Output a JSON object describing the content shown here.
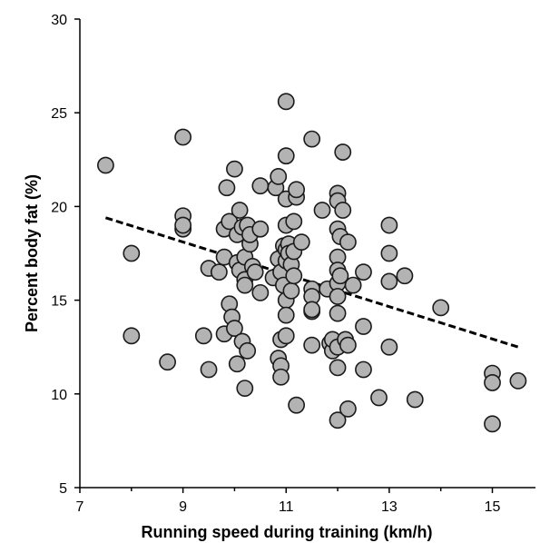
{
  "chart_data": {
    "type": "scatter",
    "title": "",
    "xlabel": "Running speed during training (km/h)",
    "ylabel": "Percent body fat (%)",
    "xlim": [
      7,
      16
    ],
    "ylim": [
      5,
      30
    ],
    "xticks": [
      7,
      9,
      11,
      13,
      15
    ],
    "yticks": [
      5,
      10,
      15,
      20,
      25,
      30
    ],
    "x_tick_labels": [
      "7",
      "9",
      "11",
      "13",
      "15"
    ],
    "y_tick_labels": [
      "5",
      "10",
      "15",
      "20",
      "25",
      "30"
    ],
    "grid": false,
    "trendline": {
      "style": "dashed",
      "x": [
        7.5,
        15.5
      ],
      "y": [
        19.4,
        12.5
      ]
    },
    "points": [
      [
        7.5,
        22.2
      ],
      [
        8.0,
        17.5
      ],
      [
        8.0,
        13.1
      ],
      [
        8.7,
        11.7
      ],
      [
        9.0,
        23.7
      ],
      [
        9.0,
        19.5
      ],
      [
        9.0,
        18.8
      ],
      [
        9.0,
        19.0
      ],
      [
        9.4,
        13.1
      ],
      [
        9.5,
        16.7
      ],
      [
        9.5,
        11.3
      ],
      [
        9.7,
        16.5
      ],
      [
        9.8,
        18.8
      ],
      [
        9.8,
        17.3
      ],
      [
        9.8,
        13.2
      ],
      [
        9.85,
        21.0
      ],
      [
        9.9,
        14.8
      ],
      [
        9.9,
        19.2
      ],
      [
        9.95,
        14.1
      ],
      [
        10.0,
        22.0
      ],
      [
        10.0,
        13.5
      ],
      [
        10.05,
        17.0
      ],
      [
        10.05,
        18.5
      ],
      [
        10.05,
        11.6
      ],
      [
        10.1,
        19.8
      ],
      [
        10.1,
        16.6
      ],
      [
        10.15,
        12.8
      ],
      [
        10.15,
        18.9
      ],
      [
        10.2,
        16.1
      ],
      [
        10.2,
        15.8
      ],
      [
        10.2,
        17.3
      ],
      [
        10.2,
        10.3
      ],
      [
        10.25,
        19.0
      ],
      [
        10.25,
        12.3
      ],
      [
        10.3,
        18.0
      ],
      [
        10.3,
        18.5
      ],
      [
        10.35,
        16.8
      ],
      [
        10.4,
        16.5
      ],
      [
        10.5,
        21.1
      ],
      [
        10.5,
        18.8
      ],
      [
        10.5,
        15.4
      ],
      [
        10.75,
        16.2
      ],
      [
        10.8,
        21.0
      ],
      [
        10.85,
        21.6
      ],
      [
        10.85,
        17.2
      ],
      [
        10.85,
        11.9
      ],
      [
        10.9,
        16.5
      ],
      [
        10.9,
        12.9
      ],
      [
        10.9,
        11.5
      ],
      [
        10.9,
        10.9
      ],
      [
        10.95,
        15.8
      ],
      [
        10.95,
        17.9
      ],
      [
        11.0,
        25.6
      ],
      [
        11.0,
        22.7
      ],
      [
        11.0,
        20.4
      ],
      [
        11.0,
        19.0
      ],
      [
        11.0,
        17.7
      ],
      [
        11.0,
        17.1
      ],
      [
        11.0,
        15.0
      ],
      [
        11.0,
        14.2
      ],
      [
        11.0,
        13.1
      ],
      [
        11.05,
        18.0
      ],
      [
        11.05,
        17.5
      ],
      [
        11.1,
        16.9
      ],
      [
        11.1,
        15.5
      ],
      [
        11.15,
        19.2
      ],
      [
        11.15,
        17.6
      ],
      [
        11.15,
        16.3
      ],
      [
        11.2,
        20.5
      ],
      [
        11.2,
        20.9
      ],
      [
        11.2,
        9.4
      ],
      [
        11.3,
        18.1
      ],
      [
        11.5,
        23.6
      ],
      [
        11.5,
        15.6
      ],
      [
        11.5,
        15.2
      ],
      [
        11.5,
        14.4
      ],
      [
        11.5,
        14.5
      ],
      [
        11.5,
        12.6
      ],
      [
        11.7,
        19.8
      ],
      [
        11.8,
        15.6
      ],
      [
        11.85,
        12.7
      ],
      [
        11.9,
        12.3
      ],
      [
        11.9,
        12.9
      ],
      [
        12.0,
        20.7
      ],
      [
        12.0,
        20.3
      ],
      [
        12.0,
        18.8
      ],
      [
        12.0,
        17.3
      ],
      [
        12.0,
        16.6
      ],
      [
        12.0,
        15.9
      ],
      [
        12.0,
        15.2
      ],
      [
        12.0,
        14.3
      ],
      [
        12.0,
        12.5
      ],
      [
        12.0,
        11.4
      ],
      [
        12.0,
        8.6
      ],
      [
        12.05,
        18.4
      ],
      [
        12.05,
        16.3
      ],
      [
        12.1,
        22.9
      ],
      [
        12.1,
        19.8
      ],
      [
        12.15,
        12.9
      ],
      [
        12.2,
        18.1
      ],
      [
        12.2,
        12.6
      ],
      [
        12.2,
        9.2
      ],
      [
        12.3,
        15.8
      ],
      [
        12.5,
        16.5
      ],
      [
        12.5,
        13.6
      ],
      [
        12.5,
        11.3
      ],
      [
        12.8,
        9.8
      ],
      [
        13.0,
        19.0
      ],
      [
        13.0,
        17.5
      ],
      [
        13.0,
        16.0
      ],
      [
        13.0,
        12.5
      ],
      [
        13.3,
        16.3
      ],
      [
        13.5,
        9.7
      ],
      [
        14.0,
        14.6
      ],
      [
        15.0,
        11.1
      ],
      [
        15.0,
        10.6
      ],
      [
        15.0,
        8.4
      ],
      [
        15.5,
        10.7
      ]
    ]
  }
}
